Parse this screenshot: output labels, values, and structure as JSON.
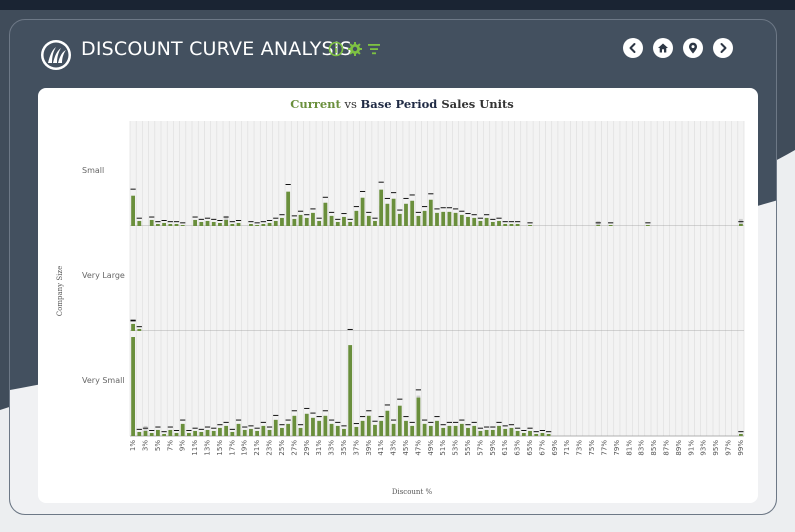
{
  "header": {
    "title": "DISCOUNT CURVE ANALYSIS",
    "icons": [
      "logo-icon",
      "info-icon",
      "settings-icon",
      "filter-icon"
    ],
    "nav": [
      "back-icon",
      "home-icon",
      "location-icon",
      "forward-icon"
    ]
  },
  "colors": {
    "current": "#6a8f3c",
    "base": "#cfcfcf",
    "header_bg": "#43505f",
    "accent": "#7ec242"
  },
  "chart_data": {
    "type": "bar",
    "title_parts": [
      "Current",
      " vs ",
      "Base Period",
      " Sales Units"
    ],
    "xlabel": "Discount %",
    "ylabel": "Company Size",
    "categories": [
      "1%",
      "2%",
      "3%",
      "4%",
      "5%",
      "6%",
      "7%",
      "8%",
      "9%",
      "10%",
      "11%",
      "12%",
      "13%",
      "14%",
      "15%",
      "16%",
      "17%",
      "18%",
      "19%",
      "20%",
      "21%",
      "22%",
      "23%",
      "24%",
      "25%",
      "26%",
      "27%",
      "28%",
      "29%",
      "30%",
      "31%",
      "32%",
      "33%",
      "34%",
      "35%",
      "36%",
      "37%",
      "38%",
      "39%",
      "40%",
      "41%",
      "42%",
      "43%",
      "44%",
      "45%",
      "46%",
      "47%",
      "48%",
      "49%",
      "50%",
      "51%",
      "52%",
      "53%",
      "54%",
      "55%",
      "56%",
      "57%",
      "58%",
      "59%",
      "60%",
      "61%",
      "62%",
      "63%",
      "64%",
      "65%",
      "66%",
      "67%",
      "68%",
      "69%",
      "70%",
      "71%",
      "72%",
      "73%",
      "74%",
      "75%",
      "76%",
      "77%",
      "78%",
      "79%",
      "80%",
      "81%",
      "82%",
      "83%",
      "84%",
      "85%",
      "86%",
      "87%",
      "88%",
      "89%",
      "90%",
      "91%",
      "92%",
      "93%",
      "94%",
      "95%",
      "96%",
      "97%",
      "98%",
      "99%"
    ],
    "tick_labels": [
      "1%",
      "3%",
      "5%",
      "7%",
      "9%",
      "11%",
      "13%",
      "15%",
      "17%",
      "19%",
      "21%",
      "23%",
      "25%",
      "27%",
      "29%",
      "31%",
      "33%",
      "35%",
      "37%",
      "39%",
      "41%",
      "43%",
      "45%",
      "47%",
      "49%",
      "51%",
      "53%",
      "55%",
      "57%",
      "59%",
      "61%",
      "63%",
      "65%",
      "67%",
      "69%",
      "71%",
      "73%",
      "75%",
      "77%",
      "79%",
      "81%",
      "83%",
      "85%",
      "87%",
      "89%",
      "91%",
      "93%",
      "95%",
      "97%",
      "99%"
    ],
    "ylim": [
      0,
      100
    ],
    "rows": [
      {
        "name": "Small",
        "current": [
          30,
          5,
          0,
          6,
          2,
          3,
          2,
          2,
          1,
          0,
          6,
          4,
          5,
          4,
          3,
          6,
          2,
          3,
          0,
          2,
          1,
          2,
          3,
          5,
          8,
          34,
          7,
          11,
          8,
          13,
          5,
          23,
          10,
          4,
          9,
          4,
          15,
          28,
          10,
          5,
          36,
          22,
          27,
          12,
          22,
          25,
          10,
          15,
          26,
          13,
          14,
          14,
          13,
          11,
          9,
          8,
          5,
          8,
          4,
          5,
          2,
          2,
          2,
          0,
          1,
          0,
          0,
          0,
          0,
          0,
          0,
          0,
          0,
          0,
          0,
          1,
          0,
          1,
          0,
          0,
          0,
          0,
          0,
          1,
          0,
          0,
          0,
          0,
          0,
          0,
          0,
          0,
          0,
          0,
          0,
          0,
          0,
          0,
          2
        ],
        "base": [
          20,
          0,
          0,
          0,
          0,
          0,
          0,
          0,
          0,
          0,
          0,
          0,
          0,
          0,
          0,
          10,
          0,
          0,
          0,
          0,
          0,
          0,
          0,
          0,
          0,
          0,
          0,
          0,
          0,
          0,
          0,
          23,
          10,
          0,
          0,
          0,
          0,
          10,
          0,
          0,
          20,
          0,
          20,
          0,
          0,
          0,
          0,
          0,
          0,
          0,
          0,
          0,
          0,
          0,
          0,
          0,
          0,
          0,
          0,
          0,
          0,
          0,
          0,
          0,
          0,
          0,
          0,
          0,
          0,
          0,
          0,
          0,
          0,
          0,
          0,
          5,
          0,
          0,
          0,
          0,
          0,
          0,
          0,
          0,
          0,
          0,
          0,
          0,
          0,
          0,
          0,
          0,
          0,
          0,
          0,
          0,
          0,
          0,
          7
        ]
      },
      {
        "name": "Very Large",
        "current": [
          7,
          2,
          0,
          0,
          0,
          0,
          0,
          0,
          0,
          0,
          0,
          0,
          0,
          0,
          0,
          0,
          0,
          0,
          0,
          0,
          0,
          0,
          0,
          0,
          0,
          0,
          0,
          0,
          0,
          0,
          0,
          0,
          0,
          0,
          0,
          0,
          0,
          0,
          0,
          0,
          0,
          0,
          0,
          0,
          0,
          0,
          0,
          0,
          0,
          0,
          0,
          0,
          0,
          0,
          0,
          0,
          0,
          0,
          0,
          0,
          0,
          0,
          0,
          0,
          0,
          0,
          0,
          0,
          0,
          0,
          0,
          0,
          0,
          0,
          0,
          0,
          0,
          0,
          0,
          0,
          0,
          0,
          0,
          0,
          0,
          0,
          0,
          0,
          0,
          0,
          0,
          0,
          0,
          0,
          0,
          0,
          0,
          0,
          0
        ],
        "base": [
          7,
          2,
          0,
          0,
          0,
          0,
          0,
          0,
          0,
          0,
          0,
          0,
          0,
          0,
          0,
          0,
          0,
          0,
          0,
          0,
          0,
          0,
          0,
          0,
          0,
          0,
          0,
          0,
          0,
          0,
          0,
          0,
          0,
          0,
          0,
          0,
          0,
          0,
          0,
          0,
          0,
          0,
          0,
          0,
          0,
          0,
          0,
          0,
          0,
          0,
          0,
          0,
          0,
          0,
          0,
          0,
          0,
          0,
          0,
          0,
          0,
          0,
          0,
          0,
          0,
          0,
          0,
          0,
          0,
          0,
          0,
          0,
          0,
          0,
          0,
          0,
          0,
          0,
          0,
          0,
          0,
          0,
          0,
          0,
          0,
          0,
          0,
          0,
          0,
          0,
          0,
          0,
          0,
          0,
          0,
          0,
          0,
          0,
          0
        ]
      },
      {
        "name": "Very Small",
        "current": [
          98,
          4,
          5,
          3,
          6,
          2,
          6,
          3,
          12,
          3,
          5,
          4,
          6,
          5,
          8,
          10,
          4,
          12,
          6,
          7,
          5,
          10,
          6,
          16,
          8,
          12,
          20,
          8,
          22,
          18,
          15,
          20,
          12,
          10,
          7,
          90,
          9,
          15,
          20,
          11,
          15,
          25,
          12,
          30,
          15,
          10,
          38,
          12,
          10,
          15,
          8,
          10,
          10,
          12,
          8,
          10,
          5,
          6,
          6,
          10,
          7,
          8,
          5,
          3,
          5,
          2,
          3,
          2,
          0,
          0,
          0,
          0,
          0,
          0,
          0,
          0,
          0,
          0,
          0,
          0,
          0,
          0,
          0,
          0,
          0,
          0,
          0,
          0,
          0,
          0,
          0,
          0,
          0,
          0,
          0,
          0,
          0,
          0,
          2
        ],
        "base": [
          0,
          0,
          10,
          0,
          0,
          0,
          0,
          0,
          10,
          0,
          0,
          0,
          0,
          0,
          0,
          0,
          0,
          0,
          0,
          0,
          0,
          0,
          0,
          0,
          0,
          0,
          0,
          0,
          0,
          0,
          0,
          0,
          0,
          0,
          0,
          0,
          0,
          0,
          0,
          0,
          0,
          0,
          0,
          0,
          0,
          0,
          40,
          0,
          0,
          0,
          0,
          0,
          0,
          0,
          0,
          0,
          0,
          0,
          0,
          0,
          0,
          0,
          0,
          0,
          0,
          0,
          0,
          0,
          0,
          0,
          0,
          0,
          0,
          0,
          0,
          0,
          0,
          0,
          0,
          0,
          0,
          0,
          0,
          0,
          0,
          0,
          0,
          0,
          0,
          0,
          0,
          0,
          0,
          0,
          0,
          0,
          0,
          0,
          0
        ]
      }
    ]
  }
}
